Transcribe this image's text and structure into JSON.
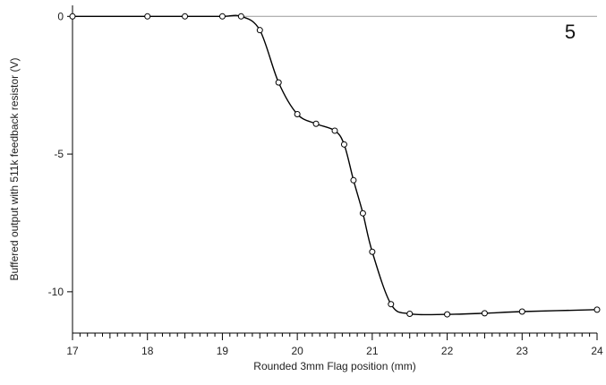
{
  "chart_data": {
    "type": "line",
    "title": "",
    "panel_label": "5",
    "xlabel": "Rounded 3mm Flag position (mm)",
    "ylabel": "Buffered output with 511k feedback resistor (V)",
    "xlim": [
      17,
      24
    ],
    "ylim": [
      -11.5,
      0.4
    ],
    "x_ticks": [
      17,
      18,
      19,
      20,
      21,
      22,
      23,
      24
    ],
    "x_tick_labels": [
      "17",
      "18",
      "19",
      "20",
      "21",
      "22",
      "23",
      "24"
    ],
    "x_minor_step": 0.1,
    "y_ticks": [
      0,
      -5,
      -10
    ],
    "y_tick_labels": [
      "0",
      "-5",
      "-10"
    ],
    "reference_line_y": 0,
    "grid": false,
    "legend": "none",
    "series": [
      {
        "marker": "open-circle",
        "color": "#000000",
        "x": [
          17.0,
          18.0,
          18.5,
          19.0,
          19.25,
          19.5,
          19.75,
          20.0,
          20.25,
          20.5,
          20.625,
          20.75,
          20.875,
          21.0,
          21.25,
          21.5,
          22.0,
          22.5,
          23.0,
          24.0
        ],
        "y": [
          0.0,
          0.0,
          0.0,
          0.0,
          0.0,
          -0.5,
          -2.4,
          -3.55,
          -3.9,
          -4.15,
          -4.65,
          -5.95,
          -7.15,
          -8.55,
          -10.45,
          -10.8,
          -10.82,
          -10.78,
          -10.72,
          -10.65
        ]
      }
    ]
  }
}
